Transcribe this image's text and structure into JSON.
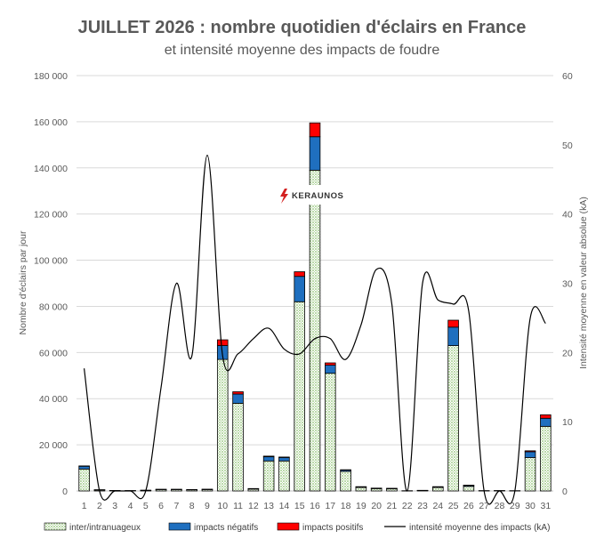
{
  "chart_data": {
    "type": "bar",
    "title": "JUILLET 2026 : nombre quotidien d'éclairs en France",
    "subtitle": "et intensité moyenne des impacts de foudre",
    "xlabel": "",
    "ylabel": "Nombre d'éclairs par jour",
    "y2label": "Intensité moyenne en valeur absolue (kA)",
    "ylim": [
      0,
      180000
    ],
    "y2lim": [
      0,
      60
    ],
    "yticks": [
      "0",
      "20 000",
      "40 000",
      "60 000",
      "80 000",
      "100 000",
      "120 000",
      "140 000",
      "160 000",
      "180 000"
    ],
    "y2ticks": [
      "0",
      "10",
      "20",
      "30",
      "40",
      "50",
      "60"
    ],
    "categories": [
      "1",
      "2",
      "3",
      "4",
      "5",
      "6",
      "7",
      "8",
      "9",
      "10",
      "11",
      "12",
      "13",
      "14",
      "15",
      "16",
      "17",
      "18",
      "19",
      "20",
      "21",
      "22",
      "23",
      "24",
      "25",
      "26",
      "27",
      "28",
      "29",
      "30",
      "31"
    ],
    "grid": true,
    "legend_position": "bottom",
    "stacked": true,
    "series": [
      {
        "name": "inter/intranuageux",
        "kind": "bar",
        "color": "#d9ead3",
        "values": [
          9500,
          400,
          150,
          100,
          250,
          600,
          600,
          500,
          600,
          57000,
          38000,
          800,
          13000,
          13000,
          82000,
          139000,
          51000,
          8500,
          1500,
          1000,
          900,
          50,
          200,
          1500,
          63000,
          2000,
          80,
          100,
          60,
          14500,
          28000
        ]
      },
      {
        "name": "impacts négatifs",
        "kind": "bar",
        "color": "#1f6fbf",
        "values": [
          1200,
          100,
          50,
          30,
          50,
          100,
          100,
          100,
          120,
          6000,
          4000,
          200,
          1800,
          1500,
          11000,
          14500,
          3500,
          600,
          300,
          200,
          200,
          20,
          50,
          300,
          8000,
          400,
          20,
          30,
          20,
          2500,
          3500
        ]
      },
      {
        "name": "impacts positifs",
        "kind": "bar",
        "color": "#ff0000",
        "values": [
          150,
          20,
          10,
          5,
          10,
          20,
          20,
          20,
          30,
          2500,
          1000,
          50,
          300,
          200,
          2000,
          6000,
          1000,
          100,
          50,
          30,
          30,
          5,
          10,
          50,
          3000,
          100,
          5,
          5,
          5,
          400,
          1500
        ]
      },
      {
        "name": "intensité moyenne des impacts (kA)",
        "kind": "line",
        "axis": "y2",
        "color": "#000000",
        "values": [
          17.7,
          0,
          0,
          0,
          0,
          15,
          30,
          19.5,
          48.5,
          19.5,
          19.8,
          22,
          23.5,
          20.5,
          19.8,
          22,
          22,
          19,
          24,
          32,
          27,
          0,
          30,
          27.6,
          27,
          26,
          0,
          0,
          0,
          25,
          24.2
        ]
      }
    ]
  },
  "logo": {
    "text": "KERAUNOS"
  }
}
